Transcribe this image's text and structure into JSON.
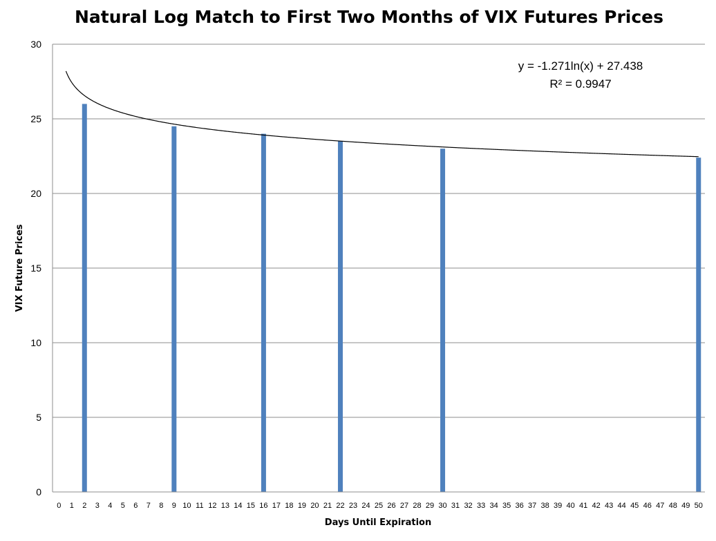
{
  "chart_data": {
    "type": "bar",
    "title": "Natural Log Match to First Two Months of VIX Futures Prices",
    "xlabel": "Days Until Expiration",
    "ylabel": "VIX Future Prices",
    "ylim": [
      0,
      30
    ],
    "yticks": [
      0,
      5,
      10,
      15,
      20,
      25,
      30
    ],
    "categories": [
      "0",
      "1",
      "2",
      "3",
      "4",
      "5",
      "6",
      "7",
      "8",
      "9",
      "10",
      "11",
      "12",
      "13",
      "14",
      "15",
      "16",
      "17",
      "18",
      "19",
      "20",
      "21",
      "22",
      "23",
      "24",
      "25",
      "26",
      "27",
      "28",
      "29",
      "30",
      "31",
      "32",
      "33",
      "34",
      "35",
      "36",
      "37",
      "38",
      "39",
      "40",
      "41",
      "42",
      "43",
      "44",
      "45",
      "46",
      "47",
      "48",
      "49",
      "50"
    ],
    "points": [
      {
        "x": 2,
        "y": 26.0
      },
      {
        "x": 9,
        "y": 24.5
      },
      {
        "x": 16,
        "y": 24.0
      },
      {
        "x": 22,
        "y": 23.5
      },
      {
        "x": 30,
        "y": 23.0
      },
      {
        "x": 50,
        "y": 22.4
      }
    ],
    "grid": true,
    "legend": "none",
    "bar_color": "#4f81bd",
    "trendline": {
      "type": "logarithmic",
      "a": -1.271,
      "b": 27.438,
      "equation": "y = -1.271ln(x) + 27.438",
      "r_squared_label": "R² = 0.9947"
    }
  }
}
